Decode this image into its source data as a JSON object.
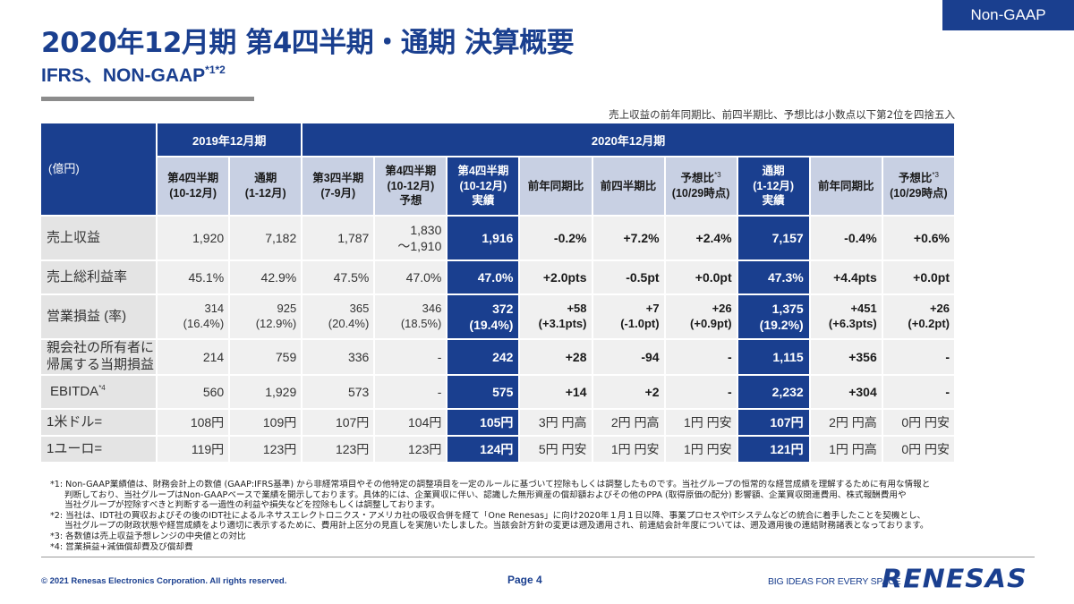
{
  "badge": "Non-GAAP",
  "title": "2020年12月期 第4四半期・通期 決算概要",
  "subtitle": "IFRS、NON-GAAP",
  "subtitle_sup": "*1*2",
  "rounding_note": "売上収益の前年同期比、前四半期比、予想比は小数点以下第2位を四捨五入",
  "table": {
    "corner": "(億円)",
    "group_2019": "2019年12月期",
    "group_2020": "2020年12月期",
    "cols": [
      {
        "l1": "第4四半期",
        "l2": "(10-12月)"
      },
      {
        "l1": "通期",
        "l2": "(1-12月)"
      },
      {
        "l1": "第3四半期",
        "l2": "(7-9月)"
      },
      {
        "l1": "第4四半期",
        "l2": "(10-12月)",
        "l3": "予想"
      },
      {
        "l1": "第4四半期",
        "l2": "(10-12月)",
        "l3": "実績"
      },
      {
        "l1": "前年同期比"
      },
      {
        "l1": "前四半期比"
      },
      {
        "l1": "予想比",
        "sup": "*3",
        "l2": "(10/29時点)"
      },
      {
        "l1": "通期",
        "l2": "(1-12月)",
        "l3": "実績"
      },
      {
        "l1": "前年同期比"
      },
      {
        "l1": "予想比",
        "sup": "*3",
        "l2": "(10/29時点)"
      }
    ],
    "rows": [
      {
        "label": "売上収益",
        "cells": [
          [
            "1,920"
          ],
          [
            "7,182"
          ],
          [
            "1,787"
          ],
          [
            "1,830",
            "～1,910"
          ],
          [
            "1,916"
          ],
          [
            "-0.2%"
          ],
          [
            "+7.2%"
          ],
          [
            "+2.4%"
          ],
          [
            "7,157"
          ],
          [
            "-0.4%"
          ],
          [
            "+0.6%"
          ]
        ]
      },
      {
        "label": "売上総利益率",
        "cells": [
          [
            "45.1%"
          ],
          [
            "42.9%"
          ],
          [
            "47.5%"
          ],
          [
            "47.0%"
          ],
          [
            "47.0%"
          ],
          [
            "+2.0pts"
          ],
          [
            "-0.5pt"
          ],
          [
            "+0.0pt"
          ],
          [
            "47.3%"
          ],
          [
            "+4.4pts"
          ],
          [
            "+0.0pt"
          ]
        ]
      },
      {
        "label": "営業損益 (率)",
        "cells": [
          [
            "314",
            "(16.4%)"
          ],
          [
            "925",
            "(12.9%)"
          ],
          [
            "365",
            "(20.4%)"
          ],
          [
            "346",
            "(18.5%)"
          ],
          [
            "372",
            "(19.4%)"
          ],
          [
            "+58",
            "(+3.1pts)"
          ],
          [
            "+7",
            "(-1.0pt)"
          ],
          [
            "+26",
            "(+0.9pt)"
          ],
          [
            "1,375",
            "(19.2%)"
          ],
          [
            "+451",
            "(+6.3pts)"
          ],
          [
            "+26",
            "(+0.2pt)"
          ]
        ]
      },
      {
        "label": "親会社の所有者に",
        "label2": "帰属する当期損益",
        "cells": [
          [
            "214"
          ],
          [
            "759"
          ],
          [
            "336"
          ],
          [
            "-"
          ],
          [
            "242"
          ],
          [
            "+28"
          ],
          [
            "-94"
          ],
          [
            "-"
          ],
          [
            "1,115"
          ],
          [
            "+356"
          ],
          [
            "-"
          ]
        ]
      },
      {
        "label": "EBITDA",
        "label_sup": "*4",
        "cells": [
          [
            "560"
          ],
          [
            "1,929"
          ],
          [
            "573"
          ],
          [
            "-"
          ],
          [
            "575"
          ],
          [
            "+14"
          ],
          [
            "+2"
          ],
          [
            "-"
          ],
          [
            "2,232"
          ],
          [
            "+304"
          ],
          [
            "-"
          ]
        ]
      },
      {
        "label": "1米ドル=",
        "cells": [
          [
            "108円"
          ],
          [
            "109円"
          ],
          [
            "107円"
          ],
          [
            "104円"
          ],
          [
            "105円"
          ],
          [
            "3円 円高"
          ],
          [
            "2円 円高"
          ],
          [
            "1円 円安"
          ],
          [
            "107円"
          ],
          [
            "2円 円高"
          ],
          [
            "0円 円安"
          ]
        ]
      },
      {
        "label": "1ユーロ=",
        "cells": [
          [
            "119円"
          ],
          [
            "123円"
          ],
          [
            "123円"
          ],
          [
            "123円"
          ],
          [
            "124円"
          ],
          [
            "5円 円安"
          ],
          [
            "1円 円安"
          ],
          [
            "1円 円安"
          ],
          [
            "121円"
          ],
          [
            "1円 円高"
          ],
          [
            "0円 円安"
          ]
        ]
      }
    ]
  },
  "footnotes": [
    "*1: Non-GAAP業績値は、財務会計上の数値 (GAAP:IFRS基準) から非経常項目やその他特定の調整項目を一定のルールに基づいて控除もしくは調整したものです。当社グループの恒常的な経営成績を理解するために有用な情報と",
    "判断しており、当社グループはNon-GAAPベースで業績を開示しております。具体的には、企業買収に伴い、認識した無形資産の償却額およびその他のPPA (取得原価の配分) 影響額、企業買収関連費用、株式報酬費用や",
    "当社グループが控除すべきと判断する一過性の利益や損失などを控除もしくは調整しております。",
    "*2: 当社は、IDT社の買収およびその後のIDT社によるルネサスエレクトロニクス・アメリカ社の吸収合併を経て「One Renesas」に向け2020年１月１日以降、事業プロセスやITシステムなどの統合に着手したことを契機とし、",
    "当社グループの財政状態や経営成績をより適切に表示するために、費用計上区分の見直しを実施いたしました。当該会計方針の変更は遡及適用され、前連結会計年度については、遡及適用後の連結財務諸表となっております。",
    "*3: 各数値は売上収益予想レンジの中央値との対比",
    "*4: 営業損益+減価償却費及び償却費"
  ],
  "footer": {
    "copyright": "© 2021 Renesas Electronics Corporation. All rights reserved.",
    "page": "Page 4",
    "tagline": "BIG IDEAS FOR EVERY SPACE",
    "logo": "RENESAS"
  },
  "colors": {
    "brand": "#1a3f8f",
    "header_light": "#c8d0e3",
    "cell": "#f0f0f0",
    "label": "#e4e4e4"
  }
}
